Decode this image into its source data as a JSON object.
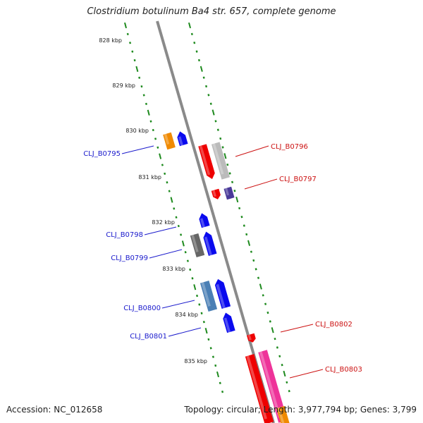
{
  "title": "Clostridium botulinum Ba4 str. 657, complete genome",
  "footer": {
    "accession": "Accession: NC_012658",
    "topology": "Topology: circular; Length: 3,977,794 bp; Genes: 3,799"
  },
  "colors": {
    "backbone": "#8a8a8a",
    "tick": "#1e8a1e",
    "left_label": "#1a1acc",
    "right_label": "#cc1111"
  },
  "kbp_labels": [
    "828 kbp",
    "829 kbp",
    "830 kbp",
    "831 kbp",
    "832 kbp",
    "833 kbp",
    "834 kbp",
    "835 kbp"
  ],
  "genes_left": [
    {
      "label": "CLJ_B0795"
    },
    {
      "label": "CLJ_B0798"
    },
    {
      "label": "CLJ_B0799"
    },
    {
      "label": "CLJ_B0800"
    },
    {
      "label": "CLJ_B0801"
    }
  ],
  "genes_right": [
    {
      "label": "CLJ_B0796"
    },
    {
      "label": "CLJ_B0797"
    },
    {
      "label": "CLJ_B0802"
    },
    {
      "label": "CLJ_B0803"
    }
  ],
  "features": [
    {
      "name": "feature-orange-830",
      "color": "#f08a00",
      "shape": "box"
    },
    {
      "name": "feature-blue-arrow-830",
      "color": "#0a0aee",
      "shape": "arrow-up"
    },
    {
      "name": "feature-red-0796",
      "color": "#ee0000",
      "shape": "arrow-down"
    },
    {
      "name": "feature-silver-0796",
      "color": "#bbbbbb",
      "shape": "box"
    },
    {
      "name": "feature-red-0797",
      "color": "#ee0000",
      "shape": "arrow-down"
    },
    {
      "name": "feature-purple-0797",
      "color": "#4a3a99",
      "shape": "box"
    },
    {
      "name": "feature-blue-arrow-832",
      "color": "#0a0aee",
      "shape": "arrow-up"
    },
    {
      "name": "feature-gray-0799",
      "color": "#666666",
      "shape": "box"
    },
    {
      "name": "feature-blue-arrow-0799",
      "color": "#0a0aee",
      "shape": "arrow-up"
    },
    {
      "name": "feature-steel-0800",
      "color": "#4a7fb5",
      "shape": "box"
    },
    {
      "name": "feature-blue-arrow-0800",
      "color": "#0a0aee",
      "shape": "arrow-up"
    },
    {
      "name": "feature-blue-arrow-0801",
      "color": "#0a0aee",
      "shape": "arrow-up"
    },
    {
      "name": "feature-red-0802",
      "color": "#ee0000",
      "shape": "arrow-down"
    },
    {
      "name": "feature-red-0803",
      "color": "#ee0000",
      "shape": "box"
    },
    {
      "name": "feature-pink-0803",
      "color": "#ee3399",
      "shape": "box"
    },
    {
      "name": "feature-orange-0803",
      "color": "#f08a00",
      "shape": "box"
    }
  ]
}
